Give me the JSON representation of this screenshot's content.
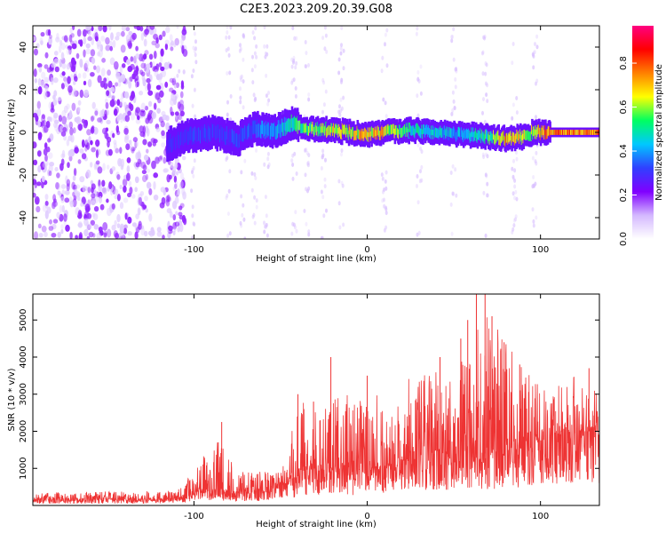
{
  "title": "C2E3.2023.209.20.39.G08",
  "colors": {
    "snr_line": "#ee3333",
    "frame": "#000000",
    "background": "#ffffff"
  },
  "colorbar": {
    "label": "Normalized spectral amplitude",
    "ticks": [
      {
        "label": "0.0",
        "value": 0.0
      },
      {
        "label": "0.2",
        "value": 0.2
      },
      {
        "label": "0.4",
        "value": 0.4
      },
      {
        "label": "0.6",
        "value": 0.6
      },
      {
        "label": "0.8",
        "value": 0.8
      }
    ],
    "range": [
      0,
      0.97
    ],
    "colormap": [
      "#ffffff",
      "#d4b8ff",
      "#8000ff",
      "#3040ff",
      "#00c8ff",
      "#00ff60",
      "#ffff00",
      "#ff8000",
      "#ff0000",
      "#ff0080"
    ]
  },
  "chart_data": [
    {
      "type": "heatmap",
      "xlabel": "Height of straight line (km)",
      "ylabel": "Frequency (Hz)",
      "xlim": [
        -193,
        134
      ],
      "ylim": [
        -50,
        50
      ],
      "x_ticks": [
        {
          "label": "-100",
          "value": -100
        },
        {
          "label": "0",
          "value": 0
        },
        {
          "label": "100",
          "value": 100
        }
      ],
      "y_ticks": [
        {
          "label": "-40",
          "value": -40
        },
        {
          "label": "-20",
          "value": -20
        },
        {
          "label": "0",
          "value": 0
        },
        {
          "label": "20",
          "value": 20
        },
        {
          "label": "40",
          "value": 40
        }
      ],
      "signal_track": {
        "x": [
          -116,
          -105,
          -90,
          -75,
          -65,
          -55,
          -45,
          -35,
          -20,
          -10,
          0,
          10,
          25,
          40,
          55,
          70,
          80,
          90,
          95,
          105,
          134
        ],
        "frequency": [
          -6,
          -2,
          0,
          -3,
          2,
          0,
          4,
          2,
          1,
          0,
          -1,
          0,
          1,
          0,
          -1,
          -2,
          -3,
          -2,
          0,
          0,
          0
        ],
        "peak_amplitude": [
          0.3,
          0.35,
          0.35,
          0.35,
          0.4,
          0.45,
          0.55,
          0.65,
          0.7,
          0.75,
          0.8,
          0.75,
          0.55,
          0.5,
          0.45,
          0.6,
          0.8,
          0.75,
          0.7,
          0.85,
          0.85
        ]
      },
      "noise_region": {
        "x_start": -193,
        "x_end": -105,
        "amplitude": 0.2
      }
    },
    {
      "type": "line",
      "xlabel": "Height of straight line (km)",
      "ylabel": "SNR (10 * v/v)",
      "xlim": [
        -193,
        134
      ],
      "ylim": [
        0,
        5700
      ],
      "x_ticks": [
        {
          "label": "-100",
          "value": -100
        },
        {
          "label": "0",
          "value": 0
        },
        {
          "label": "100",
          "value": 100
        }
      ],
      "y_ticks": [
        {
          "label": "1000",
          "value": 1000
        },
        {
          "label": "2000",
          "value": 2000
        },
        {
          "label": "3000",
          "value": 3000
        },
        {
          "label": "4000",
          "value": 4000
        },
        {
          "label": "5000",
          "value": 5000
        }
      ],
      "envelope": {
        "x": [
          -193,
          -110,
          -105,
          -95,
          -85,
          -80,
          -75,
          -60,
          -50,
          -42,
          -38,
          -30,
          -20,
          -10,
          0,
          10,
          20,
          30,
          40,
          50,
          60,
          70,
          80,
          90,
          100,
          110,
          120,
          134
        ],
        "base": [
          150,
          180,
          250,
          400,
          450,
          400,
          350,
          400,
          500,
          700,
          900,
          1000,
          1000,
          900,
          900,
          1100,
          1200,
          1200,
          1300,
          1400,
          1400,
          1400,
          1500,
          1600,
          1800,
          1900,
          2000,
          2000
        ],
        "peak": [
          350,
          400,
          700,
          1300,
          1800,
          1500,
          1000,
          900,
          1000,
          2500,
          2800,
          2600,
          3000,
          3000,
          2900,
          3200,
          3300,
          3600,
          3700,
          3800,
          4300,
          5600,
          4500,
          3700,
          3500,
          3400,
          3700,
          3000
        ]
      },
      "spikes": [
        {
          "x": -84,
          "y": 2250
        },
        {
          "x": -40,
          "y": 3000
        },
        {
          "x": -31,
          "y": 2800
        },
        {
          "x": -21,
          "y": 4000
        },
        {
          "x": 0,
          "y": 3500
        },
        {
          "x": 42,
          "y": 4000
        },
        {
          "x": 54,
          "y": 4500
        },
        {
          "x": 58,
          "y": 5000
        },
        {
          "x": 63,
          "y": 5700
        },
        {
          "x": 68,
          "y": 5700
        },
        {
          "x": 72,
          "y": 5100
        },
        {
          "x": 79,
          "y": 4400
        },
        {
          "x": 88,
          "y": 3800
        },
        {
          "x": 128,
          "y": 3700
        }
      ]
    }
  ]
}
